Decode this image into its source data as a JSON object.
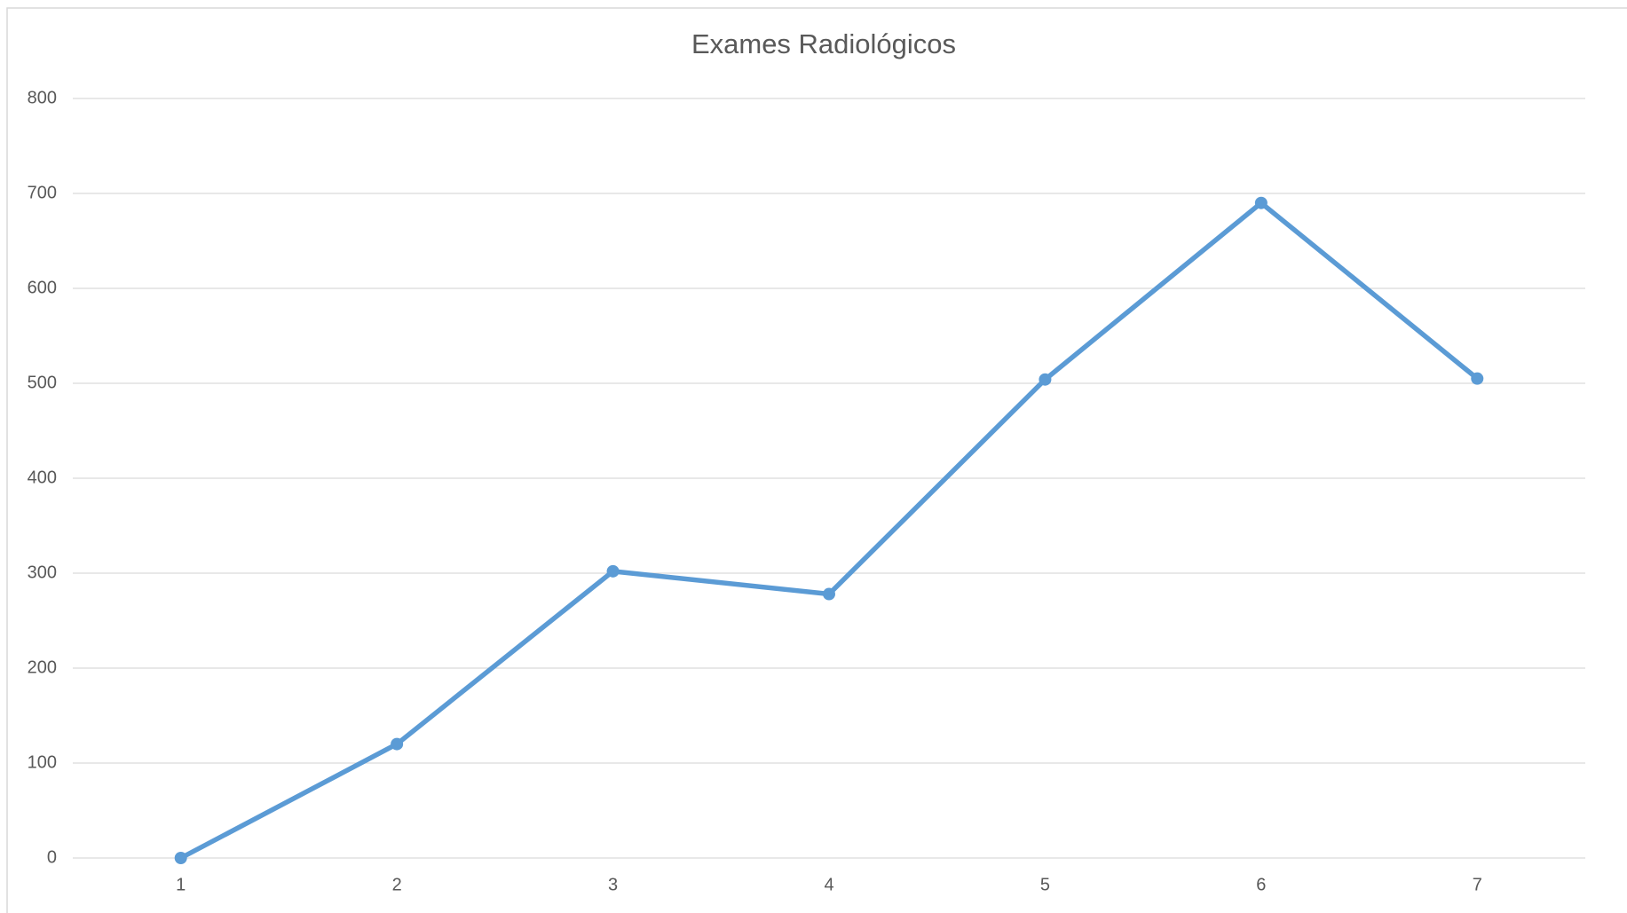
{
  "chart_data": {
    "type": "line",
    "title": "Exames Radiológicos",
    "categories": [
      "1",
      "2",
      "3",
      "4",
      "5",
      "6",
      "7"
    ],
    "series": [
      {
        "name": "Exames",
        "color": "#5b9bd5",
        "values": [
          0,
          120,
          302,
          278,
          504,
          690,
          505
        ]
      }
    ],
    "ylim": [
      0,
      800
    ],
    "yticks": [
      0,
      100,
      200,
      300,
      400,
      500,
      600,
      700,
      800
    ],
    "grid": true
  }
}
